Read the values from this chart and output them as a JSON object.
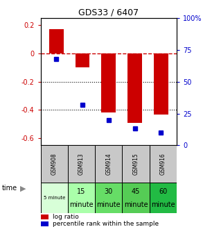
{
  "title": "GDS33 / 6407",
  "samples": [
    "GSM908",
    "GSM913",
    "GSM914",
    "GSM915",
    "GSM916"
  ],
  "log_ratios": [
    0.17,
    -0.1,
    -0.42,
    -0.49,
    -0.43
  ],
  "percentile_ranks": [
    68,
    32,
    20,
    13,
    10
  ],
  "bar_color": "#cc0000",
  "dot_color": "#0000cc",
  "ylim_left": [
    -0.65,
    0.25
  ],
  "ylim_right": [
    0,
    100
  ],
  "yticks_left": [
    0.2,
    0.0,
    -0.2,
    -0.4,
    -0.6
  ],
  "yticks_right": [
    100,
    75,
    50,
    25,
    0
  ],
  "time_labels_line1": [
    "5 minute",
    "15",
    "30",
    "45",
    "60"
  ],
  "time_labels_line2": [
    "",
    "minute",
    "minute",
    "minute",
    "minute"
  ],
  "time_bg_colors": [
    "#d8ffd8",
    "#aaffaa",
    "#66dd66",
    "#55cc55",
    "#22bb44"
  ],
  "header_bg": "#c8c8c8",
  "legend_bar_label": "log ratio",
  "legend_dot_label": "percentile rank within the sample",
  "zero_line_color": "#cc0000",
  "grid_color": "#000000",
  "bar_width": 0.55
}
